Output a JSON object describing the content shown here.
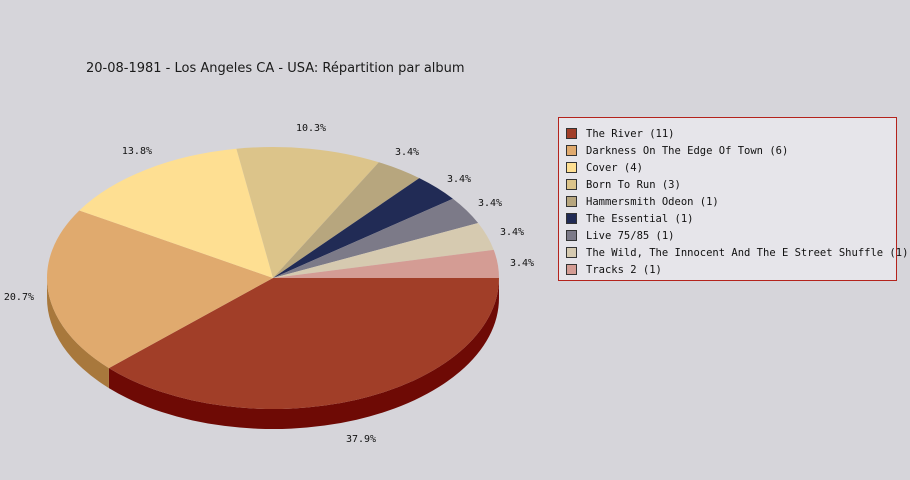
{
  "chart_data": {
    "type": "pie",
    "title": "20-08-1981 - Los Angeles CA - USA:  Répartition par album",
    "series": [
      {
        "name": "The River (11)",
        "value": 11,
        "label": "37.9%",
        "color": "#a13e28",
        "side": "#6e0a05"
      },
      {
        "name": "Darkness On The Edge Of Town (6)",
        "value": 6,
        "label": "20.7%",
        "color": "#e0aa6e",
        "side": "#a8783c"
      },
      {
        "name": "Cover (4)",
        "value": 4,
        "label": "13.8%",
        "color": "#fedf92",
        "side": "#c0a860"
      },
      {
        "name": "Born To Run (3)",
        "value": 3,
        "label": "10.3%",
        "color": "#dcc48a",
        "side": "#a08c58"
      },
      {
        "name": "Hammersmith Odeon  (1)",
        "value": 1,
        "label": "3.4%",
        "color": "#b7a67e",
        "side": "#857650"
      },
      {
        "name": "The Essential (1)",
        "value": 1,
        "label": "3.4%",
        "color": "#212b55",
        "side": "#10152e"
      },
      {
        "name": "Live 75/85 (1)",
        "value": 1,
        "label": "3.4%",
        "color": "#7c7a88",
        "side": "#55535e"
      },
      {
        "name": "The Wild, The Innocent And The E Street Shuffle (1)",
        "value": 1,
        "label": "3.4%",
        "color": "#d6cab0",
        "side": "#a89c82"
      },
      {
        "name": "Tracks 2 (1)",
        "value": 1,
        "label": "3.4%",
        "color": "#d49c94",
        "side": "#a06a62"
      }
    ],
    "legend": "right"
  }
}
